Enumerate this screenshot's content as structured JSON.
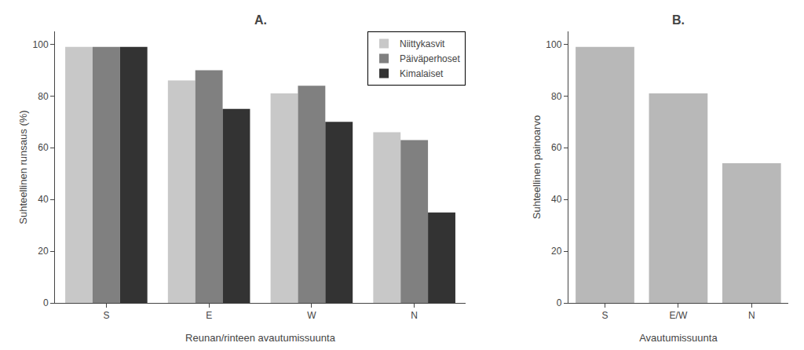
{
  "chart_data": [
    {
      "type": "bar",
      "title": "A.",
      "categories": [
        "S",
        "E",
        "W",
        "N"
      ],
      "series": [
        {
          "name": "Niittykasvit",
          "color": "#c8c8c8",
          "values": [
            99,
            86,
            81,
            66
          ]
        },
        {
          "name": "Päiväperhoset",
          "color": "#808080",
          "values": [
            99,
            90,
            84,
            63
          ]
        },
        {
          "name": "Kimalaiset",
          "color": "#333333",
          "values": [
            99,
            75,
            70,
            35
          ]
        }
      ],
      "xlabel": "Reunan/rinteen avautumissuunta",
      "ylabel": "Suhteellinen runsaus (%)",
      "ylim": [
        0,
        105
      ],
      "yticks": [
        0,
        20,
        40,
        60,
        80,
        100
      ],
      "grid": false,
      "legend": "upper right"
    },
    {
      "type": "bar",
      "title": "B.",
      "categories": [
        "S",
        "E/W",
        "N"
      ],
      "values": [
        99,
        81,
        54
      ],
      "color": "#b8b8b8",
      "xlabel": "Avautumissuunta",
      "ylabel": "Suhteellinen painoarvo",
      "ylim": [
        0,
        105
      ],
      "yticks": [
        0,
        20,
        40,
        60,
        80,
        100
      ],
      "grid": false
    }
  ]
}
